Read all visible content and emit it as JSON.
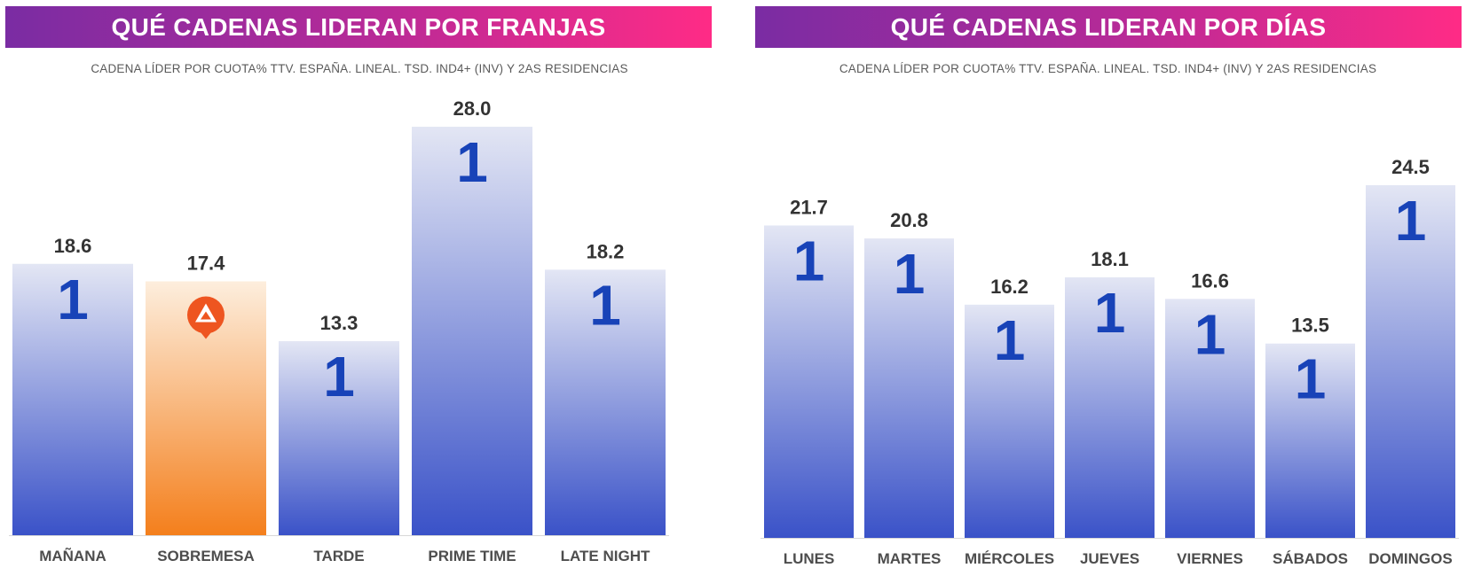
{
  "chart_data": [
    {
      "type": "bar",
      "title": "QUÉ CADENAS LIDERAN POR FRANJAS",
      "subtitle": "CADENA LÍDER POR CUOTA% TTV. ESPAÑA. LINEAL. TSD. IND4+ (INV) Y 2AS RESIDENCIAS",
      "categories": [
        "MAÑANA",
        "SOBREMESA",
        "TARDE",
        "PRIME TIME",
        "LATE NIGHT"
      ],
      "values": [
        18.6,
        17.4,
        13.3,
        28.0,
        18.2
      ],
      "value_labels": [
        "18.6",
        "17.4",
        "13.3",
        "28.0",
        "18.2"
      ],
      "leader_logos": [
        "1",
        "antena3",
        "1",
        "1",
        "1"
      ],
      "ylim": [
        0,
        28.0
      ],
      "grid": false
    },
    {
      "type": "bar",
      "title": "QUÉ CADENAS LIDERAN POR DÍAS",
      "subtitle": "CADENA LÍDER POR CUOTA% TTV. ESPAÑA. LINEAL. TSD. IND4+ (INV) Y 2AS RESIDENCIAS",
      "categories": [
        "LUNES",
        "MARTES",
        "MIÉRCOLES",
        "JUEVES",
        "VIERNES",
        "SÁBADOS",
        "DOMINGOS"
      ],
      "values": [
        21.7,
        20.8,
        16.2,
        18.1,
        16.6,
        13.5,
        24.5
      ],
      "value_labels": [
        "21.7",
        "20.8",
        "16.2",
        "18.1",
        "16.6",
        "13.5",
        "24.5"
      ],
      "leader_logos": [
        "1",
        "1",
        "1",
        "1",
        "1",
        "1",
        "1"
      ],
      "ylim": [
        0,
        24.5
      ],
      "grid": false
    }
  ],
  "colors": {
    "banner_start": "#7a2ca3",
    "banner_end": "#ff2b86",
    "bar_top_blue": "#e3e6f4",
    "bar_bottom_blue": "#3a52c8",
    "bar_top_orange": "#fdeedd",
    "bar_bottom_orange": "#f47f1c",
    "logo_blue": "#1843b8",
    "logo_orange": "#ee5520"
  },
  "icons": {
    "la1": "la1-logo-icon",
    "antena3": "antena3-logo-icon"
  }
}
